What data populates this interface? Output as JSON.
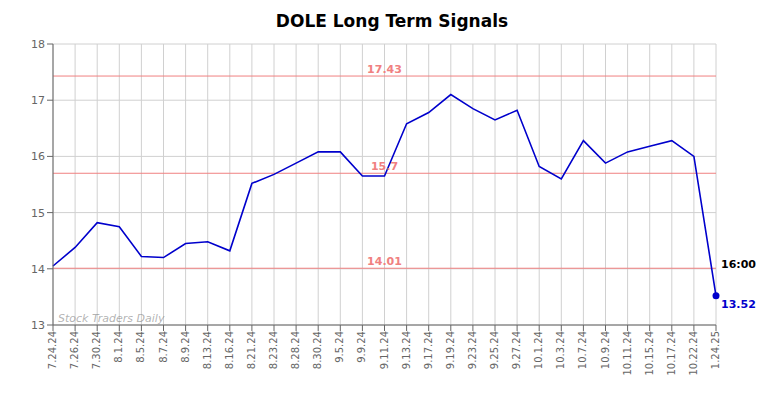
{
  "chart_data": {
    "type": "line",
    "title": "DOLE Long Term Signals",
    "categories": [
      "7.24.24",
      "7.26.24",
      "7.30.24",
      "8.1.24",
      "8.5.24",
      "8.7.24",
      "8.9.24",
      "8.13.24",
      "8.16.24",
      "8.21.24",
      "8.23.24",
      "8.28.24",
      "8.30.24",
      "9.5.24",
      "9.9.24",
      "9.11.24",
      "9.13.24",
      "9.17.24",
      "9.19.24",
      "9.23.24",
      "9.25.24",
      "9.27.24",
      "10.1.24",
      "10.3.24",
      "10.7.24",
      "10.9.24",
      "10.11.24",
      "10.15.24",
      "10.17.24",
      "10.22.24",
      "1.24.25"
    ],
    "values": [
      14.05,
      14.38,
      14.82,
      14.75,
      14.22,
      14.2,
      14.45,
      14.48,
      14.32,
      15.52,
      15.68,
      15.88,
      16.08,
      16.08,
      15.65,
      15.65,
      16.58,
      16.78,
      17.1,
      16.85,
      16.65,
      16.82,
      15.82,
      15.6,
      16.28,
      15.88,
      16.08,
      16.18,
      16.28,
      16.0,
      13.52
    ],
    "color": "#0000cc",
    "marker": "last",
    "reference_lines": [
      {
        "value": 17.43,
        "label": "17.43",
        "color": "#f08080"
      },
      {
        "value": 15.7,
        "label": "15.7",
        "color": "#f08080"
      },
      {
        "value": 14.01,
        "label": "14.01",
        "color": "#f08080"
      }
    ],
    "annotations": [
      {
        "text": "16:00",
        "y": 14.01
      },
      {
        "text": "13.52",
        "y": 13.52
      }
    ],
    "watermark": {
      "text": "Stock Traders Daily",
      "y": 13.12
    },
    "ylim": [
      13.0,
      18.0
    ],
    "yticks": [
      13,
      14,
      15,
      16,
      17,
      18
    ],
    "grid": true
  }
}
